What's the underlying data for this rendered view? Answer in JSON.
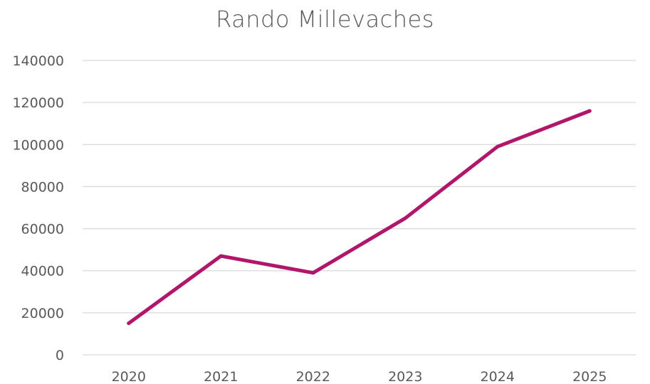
{
  "chart_data": {
    "type": "line",
    "title": "Rando Millevaches",
    "xlabel": "",
    "ylabel": "",
    "categories": [
      "2020",
      "2021",
      "2022",
      "2023",
      "2024",
      "2025"
    ],
    "series": [
      {
        "values": [
          15000,
          47000,
          39000,
          65000,
          99000,
          116000
        ],
        "color": "#B0176B"
      }
    ],
    "ylim": [
      0,
      140000
    ],
    "yticks": [
      "0",
      "20000",
      "40000",
      "60000",
      "80000",
      "100000",
      "120000",
      "140000"
    ],
    "grid": true,
    "legend": "none"
  }
}
